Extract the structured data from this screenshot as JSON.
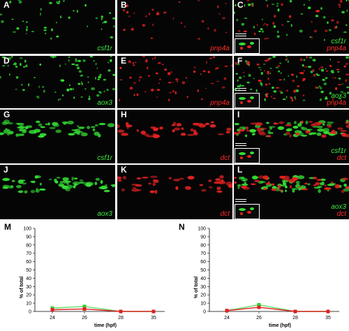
{
  "panels": [
    {
      "letter": "A",
      "labels": [
        {
          "text": "csf1r",
          "color": "green"
        }
      ],
      "channel": "green",
      "inset": false
    },
    {
      "letter": "B",
      "labels": [
        {
          "text": "pnp4a",
          "color": "red"
        }
      ],
      "channel": "red",
      "inset": false
    },
    {
      "letter": "C",
      "labels": [
        {
          "text": "csf1r",
          "color": "green"
        },
        {
          "text": "pnp4a",
          "color": "red"
        }
      ],
      "channel": "merge",
      "inset": true
    },
    {
      "letter": "D",
      "labels": [
        {
          "text": "aox3",
          "color": "green"
        }
      ],
      "channel": "green",
      "inset": false
    },
    {
      "letter": "E",
      "labels": [
        {
          "text": "pnp4a",
          "color": "red"
        }
      ],
      "channel": "red",
      "inset": false
    },
    {
      "letter": "F",
      "labels": [
        {
          "text": "aox3",
          "color": "green"
        },
        {
          "text": "pnp4a",
          "color": "red"
        }
      ],
      "channel": "merge",
      "inset": true
    },
    {
      "letter": "G",
      "labels": [
        {
          "text": "csf1r",
          "color": "green"
        }
      ],
      "channel": "green",
      "inset": false
    },
    {
      "letter": "H",
      "labels": [
        {
          "text": "dct",
          "color": "red"
        }
      ],
      "channel": "red",
      "inset": false
    },
    {
      "letter": "I",
      "labels": [
        {
          "text": "csf1r",
          "color": "green"
        },
        {
          "text": "dct",
          "color": "red"
        }
      ],
      "channel": "merge",
      "inset": true
    },
    {
      "letter": "J",
      "labels": [
        {
          "text": "aox3",
          "color": "green"
        }
      ],
      "channel": "green",
      "inset": false
    },
    {
      "letter": "K",
      "labels": [
        {
          "text": "dct",
          "color": "red"
        }
      ],
      "channel": "red",
      "inset": false
    },
    {
      "letter": "L",
      "labels": [
        {
          "text": "aox3",
          "color": "green"
        },
        {
          "text": "dct",
          "color": "red"
        }
      ],
      "channel": "merge",
      "inset": true
    }
  ],
  "colors": {
    "green_line": "#66dd66",
    "green_marker": "#2fcf2f",
    "red_line": "#e02020",
    "red_marker": "#e02020",
    "label_green": "#3fe83f",
    "label_red": "#ff2b2b"
  },
  "chart_data": [
    {
      "panel": "M",
      "type": "line",
      "x": [
        24,
        26,
        28,
        35
      ],
      "xlabel": "time (hpf)",
      "ylabel": "% of total",
      "ylim": [
        0,
        100
      ],
      "yticks": [
        0,
        10,
        20,
        30,
        40,
        50,
        60,
        70,
        80,
        90,
        100
      ],
      "series": [
        {
          "color": "green",
          "values": [
            4,
            6,
            0,
            0
          ]
        },
        {
          "color": "red",
          "values": [
            2,
            3,
            0,
            0
          ]
        }
      ]
    },
    {
      "panel": "N",
      "type": "line",
      "x": [
        24,
        26,
        28,
        35
      ],
      "xlabel": "time (hpf)",
      "ylabel": "% of total",
      "ylim": [
        0,
        100
      ],
      "yticks": [
        0,
        10,
        20,
        30,
        40,
        50,
        60,
        70,
        80,
        90,
        100
      ],
      "series": [
        {
          "color": "green",
          "values": [
            1,
            8,
            0,
            0
          ]
        },
        {
          "color": "red",
          "values": [
            1,
            5,
            0,
            0
          ]
        }
      ]
    }
  ]
}
